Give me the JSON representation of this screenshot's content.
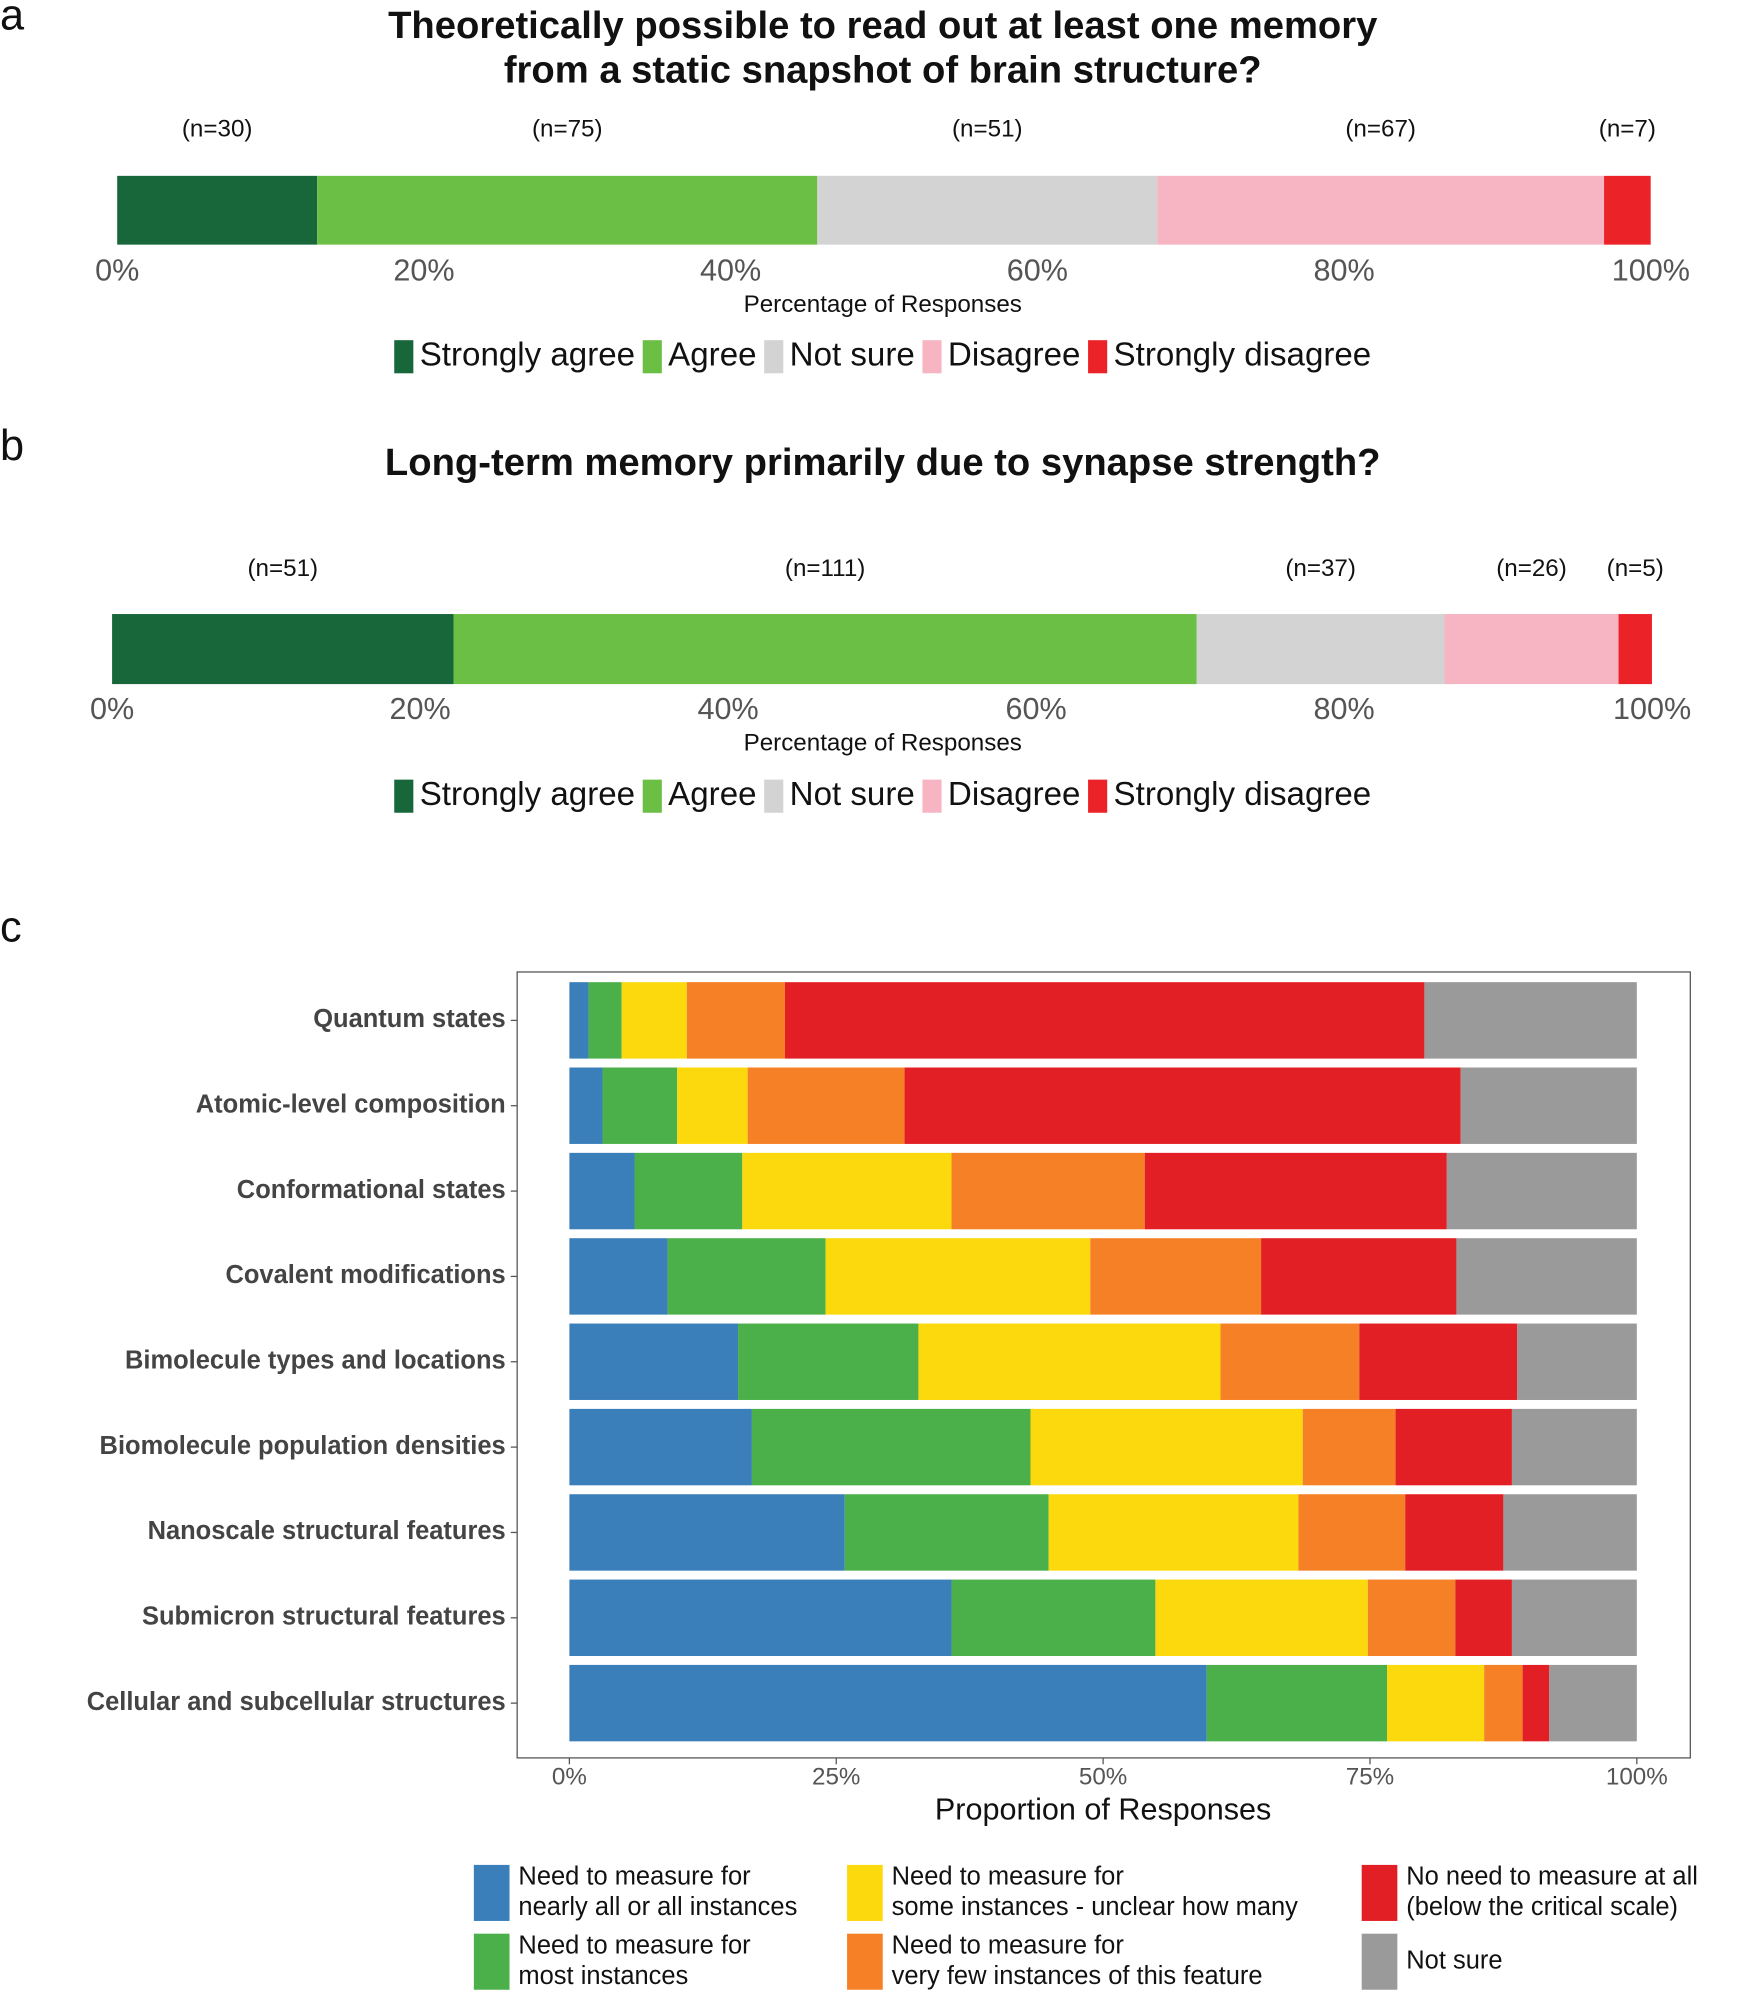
{
  "chart_data": [
    {
      "type": "bar",
      "orientation": "horizontal",
      "stacked": true,
      "panel_label": "a",
      "title": "Theoretically possible to read out at least one memory\nfrom a static snapshot of brain structure?",
      "xlabel": "Percentage of Responses",
      "xlim": [
        0,
        100
      ],
      "xticks": [
        {
          "value": 0,
          "label": "0%"
        },
        {
          "value": 20,
          "label": "20%"
        },
        {
          "value": 40,
          "label": "40%"
        },
        {
          "value": 60,
          "label": "60%"
        },
        {
          "value": 80,
          "label": "80%"
        },
        {
          "value": 100,
          "label": "100%"
        }
      ],
      "legend": "bottom",
      "series": [
        {
          "name": "Strongly agree",
          "color": "#17673a",
          "values": [
            13.04
          ],
          "n_label": "(n=30)"
        },
        {
          "name": "Agree",
          "color": "#6cbf45",
          "values": [
            32.61
          ],
          "n_label": "(n=75)"
        },
        {
          "name": "Not sure",
          "color": "#d3d3d3",
          "values": [
            22.17
          ],
          "n_label": "(n=51)"
        },
        {
          "name": "Disagree",
          "color": "#f7b5c3",
          "values": [
            29.13
          ],
          "n_label": "(n=67)"
        },
        {
          "name": "Strongly disagree",
          "color": "#eb2227",
          "values": [
            3.04
          ],
          "n_label": "(n=7)"
        }
      ]
    },
    {
      "type": "bar",
      "orientation": "horizontal",
      "stacked": true,
      "panel_label": "b",
      "title": "Long-term memory primarily due to synapse strength?",
      "xlabel": "Percentage of Responses",
      "xlim": [
        0,
        100
      ],
      "xticks": [
        {
          "value": 0,
          "label": "0%"
        },
        {
          "value": 20,
          "label": "20%"
        },
        {
          "value": 40,
          "label": "40%"
        },
        {
          "value": 60,
          "label": "60%"
        },
        {
          "value": 80,
          "label": "80%"
        },
        {
          "value": 100,
          "label": "100%"
        }
      ],
      "legend": "bottom",
      "series": [
        {
          "name": "Strongly agree",
          "color": "#17673a",
          "values": [
            22.17
          ],
          "n_label": "(n=51)"
        },
        {
          "name": "Agree",
          "color": "#6cbf45",
          "values": [
            48.26
          ],
          "n_label": "(n=111)"
        },
        {
          "name": "Not sure",
          "color": "#d3d3d3",
          "values": [
            16.09
          ],
          "n_label": "(n=37)"
        },
        {
          "name": "Disagree",
          "color": "#f7b5c3",
          "values": [
            11.3
          ],
          "n_label": "(n=26)"
        },
        {
          "name": "Strongly disagree",
          "color": "#eb2227",
          "values": [
            2.17
          ],
          "n_label": "(n=5)"
        }
      ]
    },
    {
      "type": "bar",
      "orientation": "horizontal",
      "stacked": true,
      "panel_label": "c",
      "xlabel": "Proportion of Responses",
      "xlim": [
        0,
        100
      ],
      "xticks": [
        {
          "value": 0,
          "label": "0%"
        },
        {
          "value": 25,
          "label": "25%"
        },
        {
          "value": 50,
          "label": "50%"
        },
        {
          "value": 75,
          "label": "75%"
        },
        {
          "value": 100,
          "label": "100%"
        }
      ],
      "legend": "bottom",
      "categories": [
        "Quantum states",
        "Atomic-level composition",
        "Conformational states",
        "Covalent modifications",
        "Bimolecule types and locations",
        "Biomolecule population densities",
        "Nanoscale structural features",
        "Submicron structural features",
        "Cellular and subcellular structures"
      ],
      "series": [
        {
          "name": "Need to measure for\nnearly all or all instances",
          "color": "#3a7fba",
          "values": [
            1.8,
            3.1,
            6.1,
            9.2,
            15.8,
            17.1,
            25.8,
            35.8,
            59.7
          ]
        },
        {
          "name": "Need to measure for\nmost instances",
          "color": "#4bb04a",
          "values": [
            3.1,
            7.0,
            10.1,
            14.8,
            16.9,
            26.1,
            19.1,
            19.1,
            16.9
          ]
        },
        {
          "name": "Need to measure for\nsome instances - unclear how many",
          "color": "#fbd90c",
          "values": [
            6.1,
            6.6,
            19.6,
            24.8,
            28.3,
            25.5,
            23.4,
            19.9,
            9.1
          ]
        },
        {
          "name": "Need to measure for\nvery few instances of this feature",
          "color": "#f58025",
          "values": [
            9.2,
            14.7,
            18.1,
            16.0,
            13.0,
            8.7,
            10.0,
            8.2,
            3.6
          ]
        },
        {
          "name": "No need to measure at all\n(below the critical scale)",
          "color": "#e31f26",
          "values": [
            59.9,
            52.1,
            28.3,
            18.3,
            14.8,
            10.9,
            9.2,
            5.3,
            2.5
          ]
        },
        {
          "name": "Not sure",
          "color": "#9a9a9a",
          "values": [
            19.9,
            16.5,
            17.8,
            16.9,
            11.2,
            11.7,
            12.5,
            11.7,
            8.2
          ]
        }
      ]
    }
  ]
}
